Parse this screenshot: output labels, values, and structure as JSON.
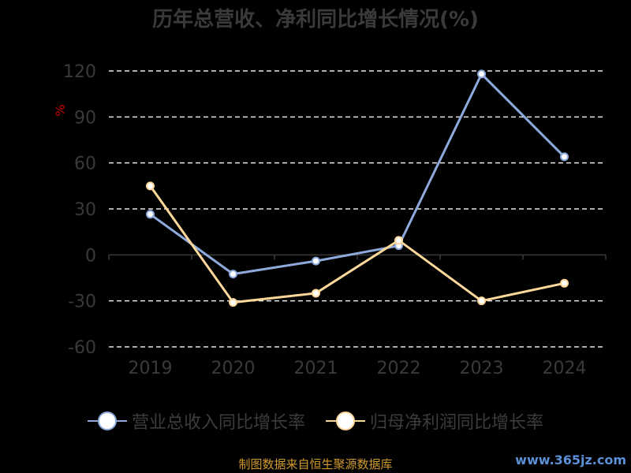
{
  "chart_data": {
    "type": "line",
    "title": "历年总营收、净利同比增长情况(%)",
    "ylabel": "%",
    "x": [
      "2019",
      "2020",
      "2021",
      "2022",
      "2023",
      "2024"
    ],
    "ylim": [
      -60,
      120
    ],
    "yticks": [
      120,
      90,
      60,
      30,
      0,
      -30,
      -60
    ],
    "grid": true,
    "legend_position": "bottom",
    "series": [
      {
        "name": "营业总收入同比增长率",
        "color": "#8eaadc",
        "values": [
          26.5,
          -12.5,
          -4,
          6,
          118,
          64
        ]
      },
      {
        "name": "归母净利润同比增长率",
        "color": "#fdd89a",
        "values": [
          45,
          -31,
          -25,
          9.5,
          -30,
          -18.5
        ]
      }
    ]
  },
  "footer": {
    "source": "制图数据来自恒生聚源数据库",
    "watermark": "www.365jz.com"
  }
}
